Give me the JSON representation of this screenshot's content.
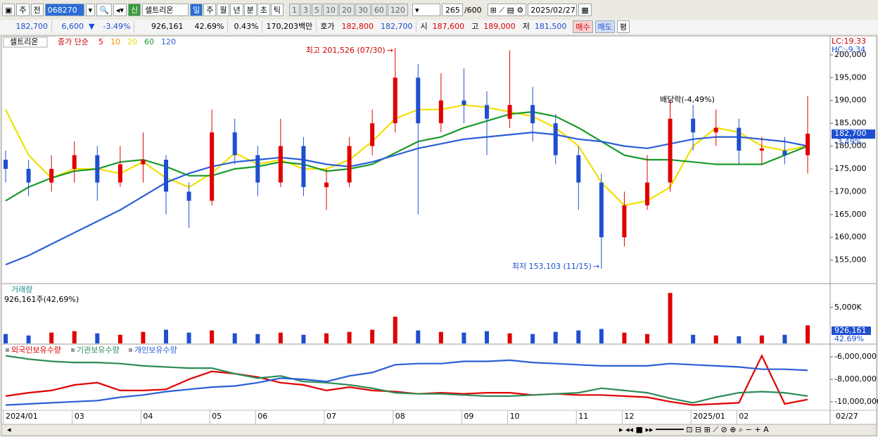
{
  "toolbar": {
    "type_label": "주",
    "prev_label": "전",
    "code": "068270",
    "badge": "신",
    "name": "셀트리온",
    "periods": [
      "일",
      "주",
      "월",
      "년",
      "분",
      "초",
      "틱"
    ],
    "minutes": [
      "1",
      "3",
      "5",
      "10",
      "20",
      "30",
      "60",
      "120"
    ],
    "count": "265",
    "max_count": "/600",
    "date": "2025/02/27"
  },
  "infobar": {
    "price": "182,700",
    "change": "6,600",
    "change_pct": "-3.49%",
    "volume": "926,161",
    "volume_pct": "42.69%",
    "turnover_pct": "0.43%",
    "amount": "170,203백만",
    "quote_label": "호가",
    "ask": "182,800",
    "bid": "182,700",
    "open_label": "시",
    "open": "187,600",
    "high_label": "고",
    "high": "189,000",
    "low_label": "저",
    "low": "181,500",
    "buy": "매수",
    "sell": "매도",
    "avg": "평"
  },
  "chart_data": [
    {
      "type": "candlestick",
      "name": "셀트리온",
      "ma_title": "종가 단순",
      "ma_legend": [
        {
          "label": "5",
          "color": "#e00000"
        },
        {
          "label": "10",
          "color": "#ff8c00"
        },
        {
          "label": "20",
          "color": "#e8d800"
        },
        {
          "label": "60",
          "color": "#1a9a2a"
        },
        {
          "label": "120",
          "color": "#2a5fd8"
        }
      ],
      "lc_label": "LC:19.33",
      "hc_label": "HC:-9.34",
      "high_annotation": "최고 201,526 (07/30)",
      "low_annotation": "최저 153,103 (11/15)",
      "dividend_annotation": "배당락(-4,49%)",
      "last_price_label": "182,700",
      "last_change_label": "-3.49%",
      "up_color": "#e00000",
      "down_color": "#1f4fd0",
      "open": [
        177000,
        175000,
        172000,
        175000,
        178000,
        172000,
        176000,
        177000,
        170000,
        168000,
        183000,
        178000,
        172000,
        180000,
        171000,
        172000,
        180000,
        185000,
        195000,
        185000,
        190000,
        189000,
        186000,
        189000,
        185000,
        178000,
        172000,
        160000,
        167000,
        172000,
        186000,
        183000,
        184000,
        179000,
        179000,
        178000
      ],
      "high": [
        179000,
        177000,
        178000,
        181000,
        180000,
        180000,
        183000,
        178000,
        172000,
        188000,
        186000,
        180000,
        186000,
        182000,
        175000,
        182000,
        188000,
        201526,
        198000,
        196000,
        197000,
        192000,
        201000,
        193000,
        187000,
        180000,
        174000,
        170000,
        178000,
        190000,
        189000,
        188000,
        186000,
        182000,
        182000,
        191000
      ],
      "low": [
        172000,
        169000,
        170000,
        172000,
        168000,
        171000,
        172000,
        165000,
        162000,
        167000,
        176000,
        169000,
        171000,
        169000,
        166000,
        171000,
        178000,
        183000,
        165000,
        183000,
        185000,
        178000,
        184000,
        181000,
        176000,
        166000,
        153103,
        158000,
        166000,
        170000,
        179000,
        180000,
        176000,
        176000,
        176000,
        174000
      ],
      "close": [
        175000,
        172000,
        175000,
        178000,
        172000,
        176000,
        177000,
        170000,
        168000,
        183000,
        178000,
        172000,
        180000,
        171000,
        172000,
        180000,
        185000,
        195000,
        185000,
        190000,
        189000,
        186000,
        189000,
        185000,
        178000,
        172000,
        160000,
        167000,
        172000,
        186000,
        183000,
        184000,
        179000,
        179500,
        178000,
        182700
      ],
      "series": [
        {
          "name": "20",
          "color": "#f0e000",
          "values": [
            188000,
            178000,
            173000,
            175000,
            175000,
            174000,
            176500,
            173000,
            171000,
            174000,
            178500,
            176000,
            177000,
            175000,
            175000,
            177000,
            181000,
            186000,
            188000,
            188000,
            189000,
            188500,
            187500,
            186500,
            184000,
            180000,
            172000,
            167000,
            168000,
            171000,
            180000,
            184000,
            183000,
            180000,
            179000,
            180000
          ]
        },
        {
          "name": "60",
          "color": "#1a9a2a",
          "values": [
            168000,
            171000,
            173000,
            174500,
            175000,
            176500,
            177000,
            175500,
            173500,
            173500,
            175000,
            175500,
            176500,
            176000,
            174500,
            175000,
            176000,
            178500,
            181000,
            182000,
            184000,
            185500,
            187000,
            187500,
            186500,
            184000,
            181000,
            178000,
            177000,
            177000,
            176500,
            176000,
            176000,
            176000,
            178000,
            180000
          ]
        },
        {
          "name": "120",
          "color": "#2a5fd8",
          "values": [
            154000,
            156000,
            158500,
            161000,
            163500,
            166000,
            169000,
            172000,
            174000,
            175500,
            176500,
            177000,
            177500,
            177000,
            176000,
            175500,
            176500,
            178000,
            179500,
            180500,
            181500,
            182000,
            182500,
            183000,
            182500,
            181500,
            181000,
            180000,
            179500,
            180500,
            181500,
            182000,
            182000,
            181500,
            181000,
            180000
          ]
        }
      ],
      "ylim": [
        150000,
        204000
      ],
      "yticks": [
        {
          "value": 155000,
          "label": "155,000"
        },
        {
          "value": 160000,
          "label": "160,000"
        },
        {
          "value": 165000,
          "label": "165,000"
        },
        {
          "value": 170000,
          "label": "170,000"
        },
        {
          "value": 175000,
          "label": "175,000"
        },
        {
          "value": 180000,
          "label": "180,000"
        },
        {
          "value": 185000,
          "label": "185,000"
        },
        {
          "value": 190000,
          "label": "190,000"
        },
        {
          "value": 195000,
          "label": "195,000"
        },
        {
          "value": 200000,
          "label": "200,000"
        }
      ]
    },
    {
      "type": "bar",
      "title": "거래량",
      "subtitle": "926,161주(42,69%)",
      "last_label": "926,161",
      "last_pct_label": "42.69%",
      "values": [
        1300000,
        1100000,
        1500000,
        1700000,
        1400000,
        1200000,
        1600000,
        1900000,
        1500000,
        1800000,
        1400000,
        1300000,
        1500000,
        1200000,
        1400000,
        1600000,
        1900000,
        3700000,
        1800000,
        1600000,
        1500000,
        1700000,
        1400000,
        1300000,
        1600000,
        1800000,
        2000000,
        1500000,
        1300000,
        7000000,
        1200000,
        1100000,
        1000000,
        1100000,
        1200000,
        2500000
      ],
      "ylim": [
        0,
        8200000
      ],
      "yticks": [
        {
          "value": 5000000,
          "label": "5,000K"
        }
      ]
    },
    {
      "type": "line",
      "categories": [
        "2024/01",
        null,
        null,
        "03",
        null,
        null,
        "04",
        null,
        null,
        "05",
        null,
        "06",
        null,
        null,
        "07",
        null,
        null,
        "08",
        null,
        null,
        "09",
        null,
        "10",
        null,
        null,
        "11",
        null,
        "12",
        null,
        null,
        "2025/01",
        null,
        "02",
        null,
        null,
        null
      ],
      "x_end_label": "02/27",
      "series": [
        {
          "name": "외국인보유수량",
          "color": "#e00000",
          "values": [
            -9500000,
            -9200000,
            -9000000,
            -8500000,
            -8300000,
            -9000000,
            -9000000,
            -8900000,
            -8000000,
            -7300000,
            -7500000,
            -7800000,
            -8300000,
            -8500000,
            -9000000,
            -8700000,
            -9000000,
            -9100000,
            -9300000,
            -9200000,
            -9300000,
            -9200000,
            -9200000,
            -9400000,
            -9300000,
            -9400000,
            -9400000,
            -9500000,
            -9600000,
            -10000000,
            -10300000,
            -10200000,
            -10100000,
            -5900000,
            -10200000,
            -9800000
          ]
        },
        {
          "name": "기관보유수량",
          "color": "#2e8b57",
          "values": [
            -5900000,
            -6200000,
            -6400000,
            -6500000,
            -6500000,
            -6600000,
            -6800000,
            -6900000,
            -7000000,
            -7000000,
            -7500000,
            -7900000,
            -7700000,
            -8200000,
            -8300000,
            -8500000,
            -8800000,
            -9200000,
            -9300000,
            -9300000,
            -9400000,
            -9500000,
            -9500000,
            -9400000,
            -9300000,
            -9200000,
            -8800000,
            -9000000,
            -9200000,
            -9700000,
            -10100000,
            -9600000,
            -9200000,
            -9100000,
            -9200000,
            -9500000
          ]
        },
        {
          "name": "개인보유수량",
          "color": "#2a5fd8",
          "values": [
            -10300000,
            -10200000,
            -10100000,
            -10000000,
            -9900000,
            -9600000,
            -9400000,
            -9100000,
            -8900000,
            -8700000,
            -8600000,
            -8300000,
            -7900000,
            -8000000,
            -8200000,
            -7700000,
            -7400000,
            -6700000,
            -6600000,
            -6600000,
            -6400000,
            -6400000,
            -6300000,
            -6500000,
            -6600000,
            -6700000,
            -6800000,
            -6800000,
            -6800000,
            -6600000,
            -6700000,
            -6800000,
            -6900000,
            -7100000,
            -7100000,
            -7200000
          ]
        }
      ],
      "ylim": [
        -10700000,
        -5050000
      ],
      "yticks": [
        {
          "value": -6000000,
          "label": "-6,000,000"
        },
        {
          "value": -8000000,
          "label": "-8,000,000"
        },
        {
          "value": -10000000,
          "label": "-10,000,000"
        }
      ]
    }
  ]
}
